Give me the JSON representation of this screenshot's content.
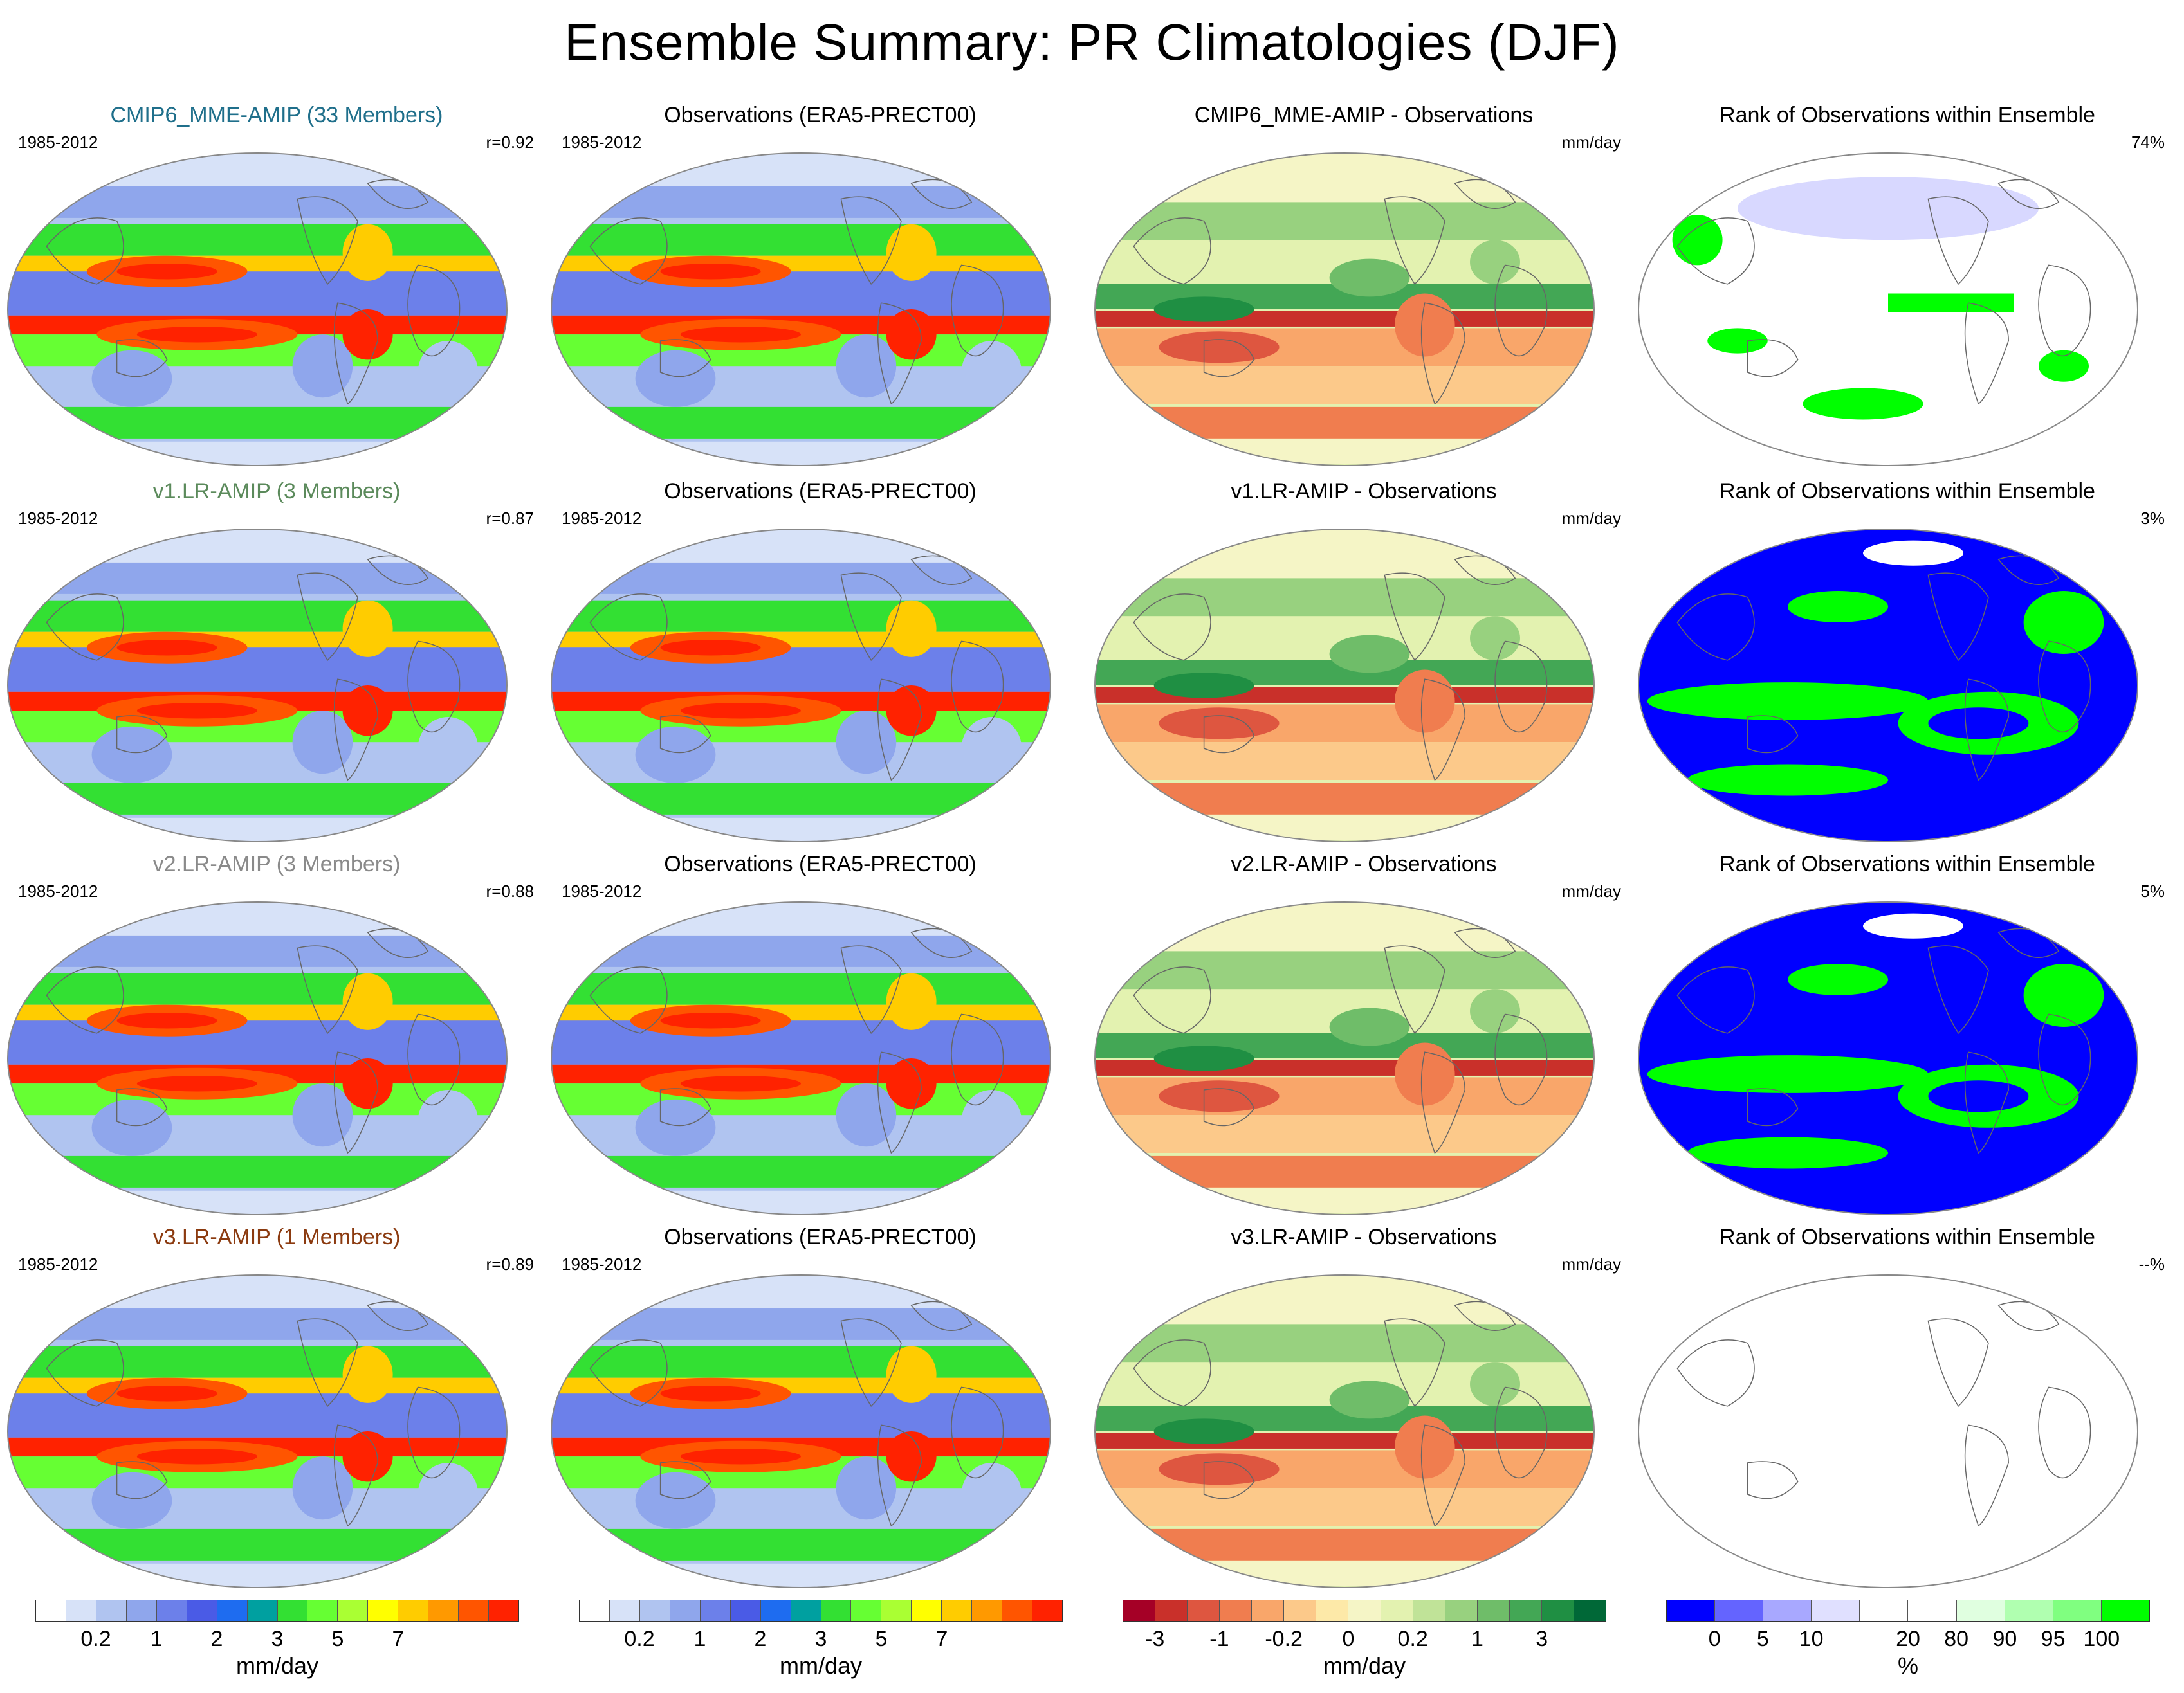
{
  "figure": {
    "title": "Ensemble Summary: PR Climatologies (DJF)",
    "period": "1985-2012",
    "unit": "mm/day",
    "pct_unit": "%"
  },
  "rows": [
    {
      "model_title": "CMIP6_MME-AMIP (33 Members)",
      "model_color": "#1f6f8b",
      "r": "r=0.92",
      "obs_title": "Observations (ERA5-PRECT00)",
      "diff_title": "CMIP6_MME-AMIP - Observations",
      "rank_title": "Rank of Observations within Ensemble",
      "rank_pct": "74%",
      "rank_style": "light"
    },
    {
      "model_title": "v1.LR-AMIP (3 Members)",
      "model_color": "#5b8a5b",
      "r": "r=0.87",
      "obs_title": "Observations (ERA5-PRECT00)",
      "diff_title": "v1.LR-AMIP - Observations",
      "rank_title": "Rank of Observations within Ensemble",
      "rank_pct": "3%",
      "rank_style": "dense"
    },
    {
      "model_title": "v2.LR-AMIP (3 Members)",
      "model_color": "#8a8a8a",
      "r": "r=0.88",
      "obs_title": "Observations (ERA5-PRECT00)",
      "diff_title": "v2.LR-AMIP - Observations",
      "rank_title": "Rank of Observations within Ensemble",
      "rank_pct": "5%",
      "rank_style": "dense"
    },
    {
      "model_title": "v3.LR-AMIP (1 Members)",
      "model_color": "#8b3a0f",
      "r": "r=0.89",
      "obs_title": "Observations (ERA5-PRECT00)",
      "diff_title": "v3.LR-AMIP - Observations",
      "rank_title": "Rank of Observations within Ensemble",
      "rank_pct": "--%",
      "rank_style": "empty"
    }
  ],
  "colorbars": {
    "precip": {
      "colors": [
        "#ffffff",
        "#d7e2f8",
        "#b0c4f0",
        "#8fa6ec",
        "#6c80ea",
        "#4a5be6",
        "#1e6cf0",
        "#00a0a0",
        "#33e033",
        "#66ff33",
        "#aaff33",
        "#ffff00",
        "#ffcc00",
        "#ff9900",
        "#ff5500",
        "#ff2200"
      ],
      "ticks": [
        "0.2",
        "1",
        "2",
        "3",
        "5",
        "7"
      ],
      "unit": "mm/day"
    },
    "diff": {
      "colors": [
        "#a50026",
        "#c9302a",
        "#de5640",
        "#f07d4f",
        "#f9a66a",
        "#fcc98a",
        "#fde9a8",
        "#f5f5c6",
        "#e3f2b0",
        "#c0e398",
        "#98d17f",
        "#6fbd69",
        "#43a755",
        "#1f8f43",
        "#006837"
      ],
      "ticks": [
        "-3",
        "-1",
        "-0.2",
        "0",
        "0.2",
        "1",
        "3"
      ],
      "unit": "mm/day"
    },
    "rank": {
      "colors": [
        "#0000ff",
        "#6464ff",
        "#a8a8ff",
        "#e0e0ff",
        "#ffffff",
        "#ffffff",
        "#e0ffe0",
        "#b0ffb0",
        "#80ff80",
        "#00ff00"
      ],
      "ticks": [
        "0",
        "5",
        "10",
        "20",
        "80",
        "90",
        "95",
        "100"
      ],
      "unit": "%"
    }
  }
}
